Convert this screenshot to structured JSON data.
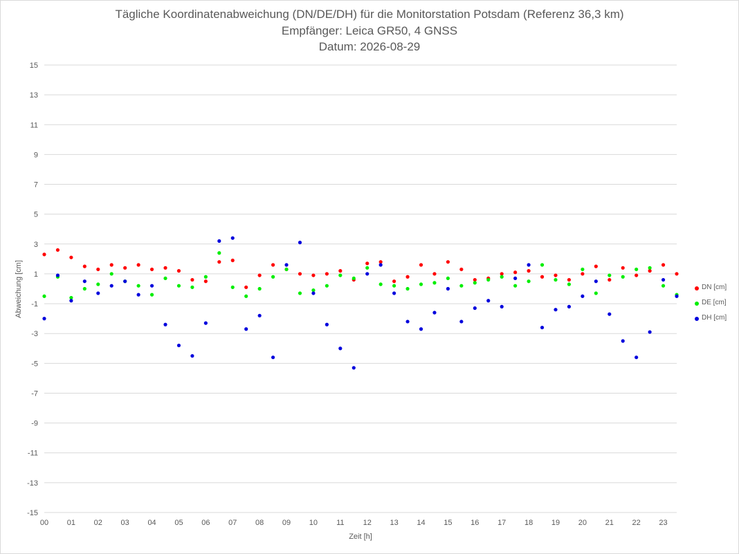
{
  "chart_data": {
    "type": "scatter",
    "title": "Tägliche Koordinatenabweichung (DN/DE/DH) für die Monitorstation Potsdam (Referenz 36,3 km)",
    "subtitle_1": "Empfänger: Leica GR50, 4 GNSS",
    "subtitle_2": "Datum: 2026-08-29",
    "xlabel": "Zeit [h]",
    "ylabel": "Abweichung [cm]",
    "xlim": [
      0,
      23.5
    ],
    "ylim": [
      -15,
      15
    ],
    "y_ticks": [
      15,
      13,
      11,
      9,
      7,
      5,
      3,
      1,
      -1,
      -3,
      -5,
      -7,
      -9,
      -11,
      -13,
      -15
    ],
    "x_ticks": [
      "00",
      "01",
      "02",
      "03",
      "04",
      "05",
      "06",
      "07",
      "08",
      "09",
      "10",
      "11",
      "12",
      "13",
      "14",
      "15",
      "16",
      "17",
      "18",
      "19",
      "20",
      "21",
      "22",
      "23"
    ],
    "legend_position": "right",
    "grid": "horizontal",
    "series": [
      {
        "name": "DN [cm]",
        "color": "#ff0000",
        "x": [
          0,
          0.5,
          1,
          1.5,
          2,
          2.5,
          3,
          3.5,
          4,
          4.5,
          5,
          5.5,
          6,
          6.5,
          7,
          7.5,
          8,
          8.5,
          9,
          9.5,
          10,
          10.5,
          11,
          11.5,
          12,
          12.5,
          13,
          13.5,
          14,
          14.5,
          15,
          15.5,
          16,
          16.5,
          17,
          17.5,
          18,
          18.5,
          19,
          19.5,
          20,
          20.5,
          21,
          21.5,
          22,
          22.5,
          23,
          23.5
        ],
        "y": [
          2.3,
          2.6,
          2.1,
          1.5,
          1.3,
          1.6,
          1.4,
          1.6,
          1.3,
          1.4,
          1.2,
          0.6,
          0.5,
          1.8,
          1.9,
          0.1,
          0.9,
          1.6,
          1.3,
          1.0,
          0.9,
          1.0,
          1.2,
          0.6,
          1.7,
          1.8,
          0.5,
          0.8,
          1.6,
          1.0,
          1.8,
          1.3,
          0.6,
          0.7,
          1.0,
          1.1,
          1.2,
          0.8,
          0.9,
          0.6,
          1.0,
          1.5,
          0.6,
          1.4,
          0.9,
          1.2,
          1.6,
          1.0
        ]
      },
      {
        "name": "DE [cm]",
        "color": "#00ee00",
        "x": [
          0,
          0.5,
          1,
          1.5,
          2,
          2.5,
          3,
          3.5,
          4,
          4.5,
          5,
          5.5,
          6,
          6.5,
          7,
          7.5,
          8,
          8.5,
          9,
          9.5,
          10,
          10.5,
          11,
          11.5,
          12,
          12.5,
          13,
          13.5,
          14,
          14.5,
          15,
          15.5,
          16,
          16.5,
          17,
          17.5,
          18,
          18.5,
          19,
          19.5,
          20,
          20.5,
          21,
          21.5,
          22,
          22.5,
          23,
          23.5
        ],
        "y": [
          -0.5,
          0.8,
          -0.6,
          0.0,
          0.3,
          1.0,
          0.5,
          0.2,
          -0.4,
          0.7,
          0.2,
          0.1,
          0.8,
          2.4,
          0.1,
          -0.5,
          0.0,
          0.8,
          1.3,
          -0.3,
          -0.1,
          0.2,
          0.9,
          0.7,
          1.4,
          0.3,
          0.2,
          0.0,
          0.3,
          0.4,
          0.7,
          0.2,
          0.4,
          0.6,
          0.8,
          0.2,
          0.5,
          1.6,
          0.6,
          0.3,
          1.3,
          -0.3,
          0.9,
          0.8,
          1.3,
          1.4,
          0.2,
          -0.4
        ]
      },
      {
        "name": "DH [cm]",
        "color": "#0000dd",
        "x": [
          0,
          0.5,
          1,
          1.5,
          2,
          2.5,
          3,
          3.5,
          4,
          4.5,
          5,
          5.5,
          6,
          6.5,
          7,
          7.5,
          8,
          8.5,
          9,
          9.5,
          10,
          10.5,
          11,
          11.5,
          12,
          12.5,
          13,
          13.5,
          14,
          14.5,
          15,
          15.5,
          16,
          16.5,
          17,
          17.5,
          18,
          18.5,
          19,
          19.5,
          20,
          20.5,
          21,
          21.5,
          22,
          22.5,
          23,
          23.5
        ],
        "y": [
          -2.0,
          0.9,
          -0.8,
          0.5,
          -0.3,
          0.2,
          0.5,
          -0.4,
          0.2,
          -2.4,
          -3.8,
          -4.5,
          -2.3,
          3.2,
          3.4,
          -2.7,
          -1.8,
          -4.6,
          1.6,
          3.1,
          -0.3,
          -2.4,
          -4.0,
          -5.3,
          1.0,
          1.6,
          -0.3,
          -2.2,
          -2.7,
          -1.6,
          0.0,
          -2.2,
          -1.3,
          -0.8,
          -1.2,
          0.7,
          1.6,
          -2.6,
          -1.4,
          -1.2,
          -0.5,
          0.5,
          -1.7,
          -3.5,
          -4.6,
          -2.9,
          0.6,
          -0.5
        ]
      }
    ]
  }
}
